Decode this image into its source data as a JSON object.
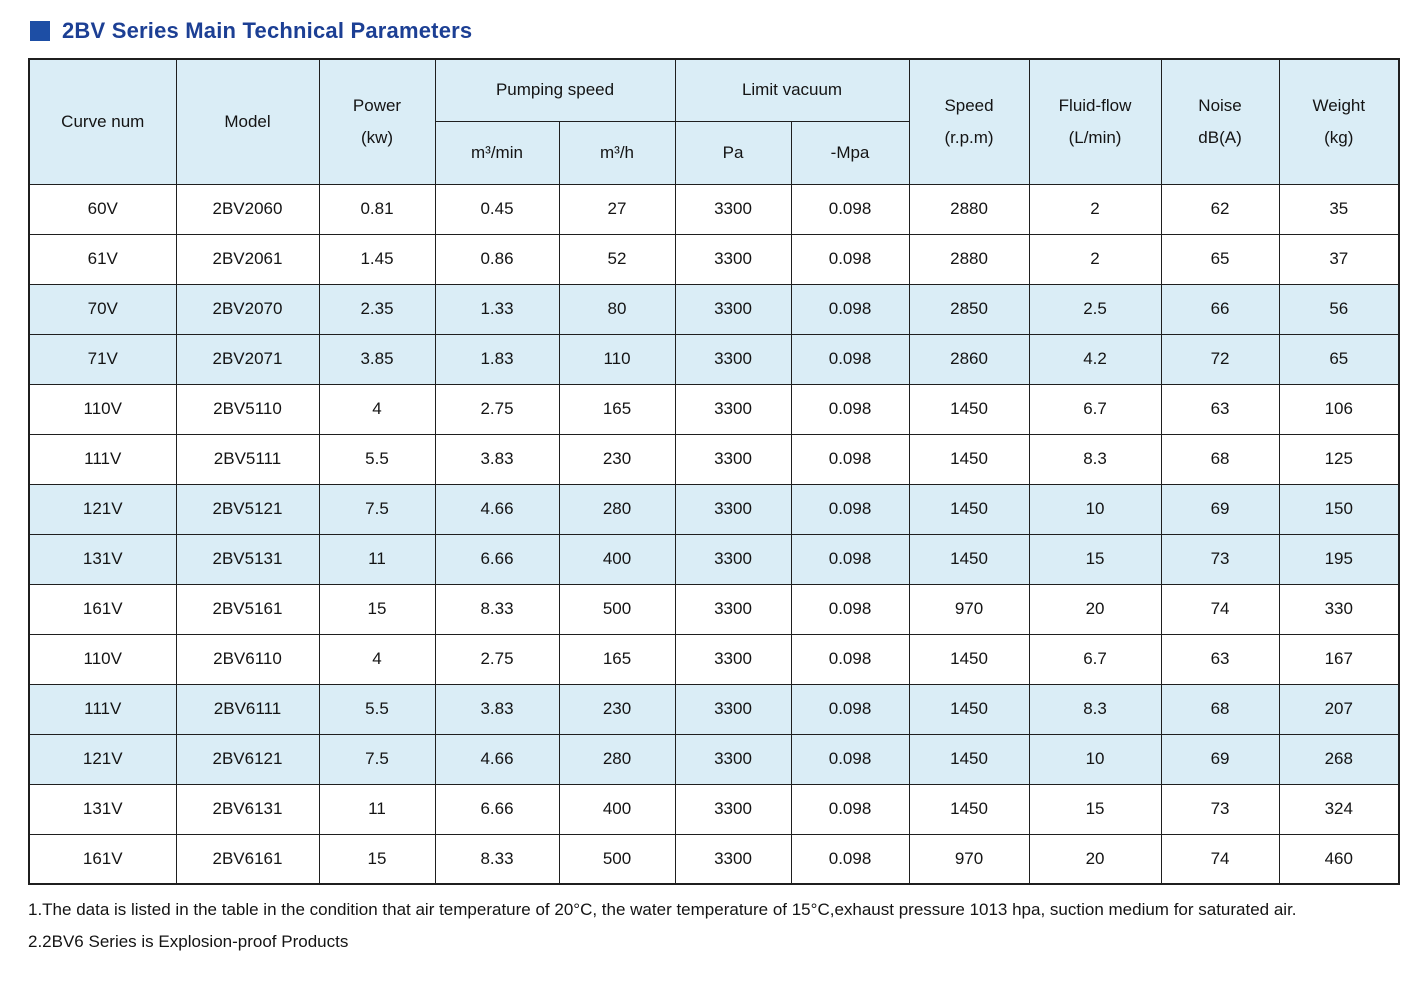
{
  "page": {
    "title": "2BV Series Main Technical Parameters"
  },
  "colors": {
    "title_color": "#1c3f94",
    "accent": "#1d4ea5",
    "band_bg": "#daedf6",
    "header_bg": "#daedf6",
    "border": "#1f1f1f"
  },
  "table": {
    "headers": {
      "curve_num": "Curve num",
      "model": "Model",
      "power_line1": "Power",
      "power_line2": "(kw)",
      "pumping_speed": "Pumping speed",
      "pumping_m3min": "m³/min",
      "pumping_m3h": "m³/h",
      "limit_vacuum": "Limit vacuum",
      "pa": "Pa",
      "mpa": "-Mpa",
      "speed_line1": "Speed",
      "speed_line2": "(r.p.m)",
      "fluid_line1": "Fluid-flow",
      "fluid_line2": "(L/min)",
      "noise_line1": "Noise",
      "noise_line2": "dB(A)",
      "weight_line1": "Weight",
      "weight_line2": "(kg)"
    },
    "rows": [
      [
        "60V",
        "2BV2060",
        "0.81",
        "0.45",
        "27",
        "3300",
        "0.098",
        "2880",
        "2",
        "62",
        "35"
      ],
      [
        "61V",
        "2BV2061",
        "1.45",
        "0.86",
        "52",
        "3300",
        "0.098",
        "2880",
        "2",
        "65",
        "37"
      ],
      [
        "70V",
        "2BV2070",
        "2.35",
        "1.33",
        "80",
        "3300",
        "0.098",
        "2850",
        "2.5",
        "66",
        "56"
      ],
      [
        "71V",
        "2BV2071",
        "3.85",
        "1.83",
        "110",
        "3300",
        "0.098",
        "2860",
        "4.2",
        "72",
        "65"
      ],
      [
        "110V",
        "2BV5110",
        "4",
        "2.75",
        "165",
        "3300",
        "0.098",
        "1450",
        "6.7",
        "63",
        "106"
      ],
      [
        "111V",
        "2BV5111",
        "5.5",
        "3.83",
        "230",
        "3300",
        "0.098",
        "1450",
        "8.3",
        "68",
        "125"
      ],
      [
        "121V",
        "2BV5121",
        "7.5",
        "4.66",
        "280",
        "3300",
        "0.098",
        "1450",
        "10",
        "69",
        "150"
      ],
      [
        "131V",
        "2BV5131",
        "11",
        "6.66",
        "400",
        "3300",
        "0.098",
        "1450",
        "15",
        "73",
        "195"
      ],
      [
        "161V",
        "2BV5161",
        "15",
        "8.33",
        "500",
        "3300",
        "0.098",
        "970",
        "20",
        "74",
        "330"
      ],
      [
        "110V",
        "2BV6110",
        "4",
        "2.75",
        "165",
        "3300",
        "0.098",
        "1450",
        "6.7",
        "63",
        "167"
      ],
      [
        "111V",
        "2BV6111",
        "5.5",
        "3.83",
        "230",
        "3300",
        "0.098",
        "1450",
        "8.3",
        "68",
        "207"
      ],
      [
        "121V",
        "2BV6121",
        "7.5",
        "4.66",
        "280",
        "3300",
        "0.098",
        "1450",
        "10",
        "69",
        "268"
      ],
      [
        "131V",
        "2BV6131",
        "11",
        "6.66",
        "400",
        "3300",
        "0.098",
        "1450",
        "15",
        "73",
        "324"
      ],
      [
        "161V",
        "2BV6161",
        "15",
        "8.33",
        "500",
        "3300",
        "0.098",
        "970",
        "20",
        "74",
        "460"
      ]
    ]
  },
  "notes": [
    "1.The data is listed in the table in the condition that air temperature of 20°C, the water temperature of 15°C,exhaust pressure 1013 hpa, suction medium for saturated air.",
    "2.2BV6 Series is Explosion-proof Products"
  ]
}
